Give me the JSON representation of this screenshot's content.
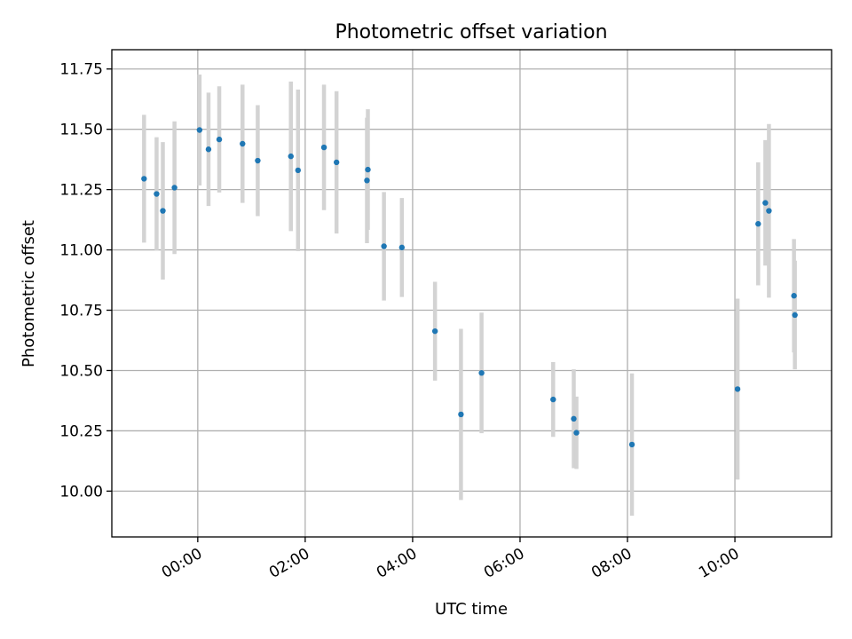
{
  "chart_data": {
    "type": "scatter",
    "title": "Photometric offset variation",
    "xlabel": "UTC time",
    "ylabel": "Photometric offset",
    "xlim": [
      "-01:36",
      "11:48"
    ],
    "ylim": [
      9.81,
      11.83
    ],
    "grid": true,
    "x_ticks": [
      "00:00",
      "02:00",
      "04:00",
      "06:00",
      "08:00",
      "10:00"
    ],
    "y_ticks": [
      "10.00",
      "10.25",
      "10.50",
      "10.75",
      "11.00",
      "11.25",
      "11.50",
      "11.75"
    ],
    "marker_color": "#1f77b4",
    "errorbar_color": "#d3d3d3",
    "points": [
      {
        "time": "-01:00",
        "y": 11.295,
        "err": 0.265
      },
      {
        "time": "-00:46",
        "y": 11.232,
        "err": 0.235
      },
      {
        "time": "-00:39",
        "y": 11.162,
        "err": 0.285
      },
      {
        "time": "-00:26",
        "y": 11.258,
        "err": 0.275
      },
      {
        "time": "00:02",
        "y": 11.497,
        "err": 0.23
      },
      {
        "time": "00:12",
        "y": 11.417,
        "err": 0.235
      },
      {
        "time": "00:24",
        "y": 11.458,
        "err": 0.22
      },
      {
        "time": "00:50",
        "y": 11.44,
        "err": 0.245
      },
      {
        "time": "01:07",
        "y": 11.37,
        "err": 0.23
      },
      {
        "time": "01:44",
        "y": 11.388,
        "err": 0.31
      },
      {
        "time": "01:52",
        "y": 11.33,
        "err": 0.335
      },
      {
        "time": "02:21",
        "y": 11.425,
        "err": 0.26
      },
      {
        "time": "02:35",
        "y": 11.363,
        "err": 0.295
      },
      {
        "time": "03:09",
        "y": 11.288,
        "err": 0.26
      },
      {
        "time": "03:10",
        "y": 11.333,
        "err": 0.25
      },
      {
        "time": "03:28",
        "y": 11.015,
        "err": 0.225
      },
      {
        "time": "03:48",
        "y": 11.01,
        "err": 0.205
      },
      {
        "time": "04:25",
        "y": 10.663,
        "err": 0.205
      },
      {
        "time": "04:54",
        "y": 10.318,
        "err": 0.355
      },
      {
        "time": "05:17",
        "y": 10.49,
        "err": 0.25
      },
      {
        "time": "06:37",
        "y": 10.38,
        "err": 0.155
      },
      {
        "time": "07:00",
        "y": 10.3,
        "err": 0.205
      },
      {
        "time": "07:03",
        "y": 10.242,
        "err": 0.15
      },
      {
        "time": "08:05",
        "y": 10.193,
        "err": 0.295
      },
      {
        "time": "10:03",
        "y": 10.423,
        "err": 0.375
      },
      {
        "time": "10:26",
        "y": 11.108,
        "err": 0.255
      },
      {
        "time": "10:34",
        "y": 11.195,
        "err": 0.26
      },
      {
        "time": "10:38",
        "y": 11.162,
        "err": 0.36
      },
      {
        "time": "11:06",
        "y": 10.81,
        "err": 0.235
      },
      {
        "time": "11:07",
        "y": 10.73,
        "err": 0.225
      }
    ]
  }
}
